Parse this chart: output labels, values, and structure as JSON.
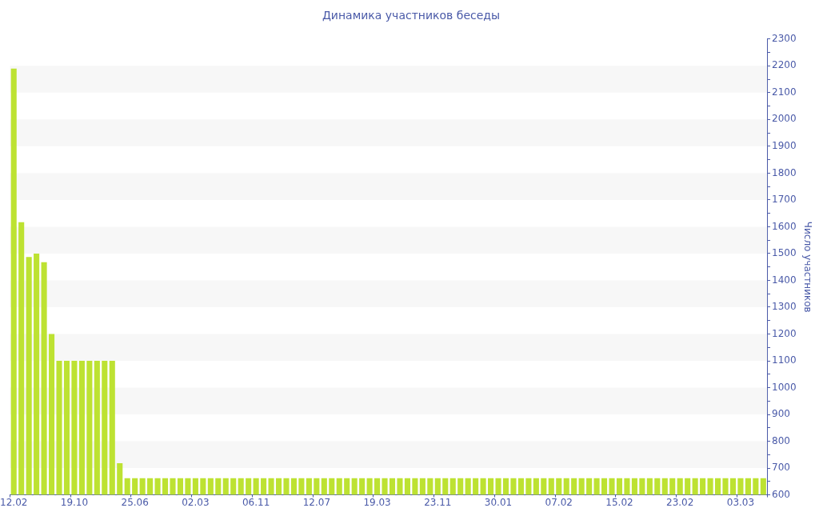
{
  "chart_data": {
    "type": "bar",
    "title": "Динамика участников беседы",
    "y2label": "Число участников",
    "categories": [
      "12.02",
      null,
      null,
      null,
      null,
      null,
      null,
      null,
      "19.10",
      null,
      null,
      null,
      null,
      null,
      null,
      null,
      "25.06",
      null,
      null,
      null,
      null,
      null,
      null,
      null,
      "02.03",
      null,
      null,
      null,
      null,
      null,
      null,
      null,
      "06.11",
      null,
      null,
      null,
      null,
      null,
      null,
      null,
      "12.07",
      null,
      null,
      null,
      null,
      null,
      null,
      null,
      "19.03",
      null,
      null,
      null,
      null,
      null,
      null,
      null,
      "23.11",
      null,
      null,
      null,
      null,
      null,
      null,
      null,
      "30.01",
      null,
      null,
      null,
      null,
      null,
      null,
      null,
      "07.02",
      null,
      null,
      null,
      null,
      null,
      null,
      null,
      "15.02",
      null,
      null,
      null,
      null,
      null,
      null,
      null,
      "23.02",
      null,
      null,
      null,
      null,
      null,
      null,
      null,
      "03.03",
      null,
      null,
      null
    ],
    "series": [
      {
        "color": "#bde232",
        "axis": "y2",
        "values": [
          2190,
          1617,
          1487,
          1500,
          1468,
          1200,
          1100,
          1100,
          1100,
          1100,
          1100,
          1100,
          1100,
          1100,
          718,
          662,
          662,
          662,
          662,
          662,
          662,
          662,
          662,
          662,
          662,
          662,
          662,
          662,
          662,
          662,
          662,
          662,
          662,
          662,
          662,
          662,
          662,
          662,
          662,
          662,
          662,
          662,
          662,
          662,
          662,
          662,
          662,
          662,
          662,
          662,
          662,
          662,
          662,
          662,
          662,
          662,
          662,
          662,
          662,
          662,
          662,
          662,
          662,
          662,
          662,
          662,
          662,
          662,
          662,
          662,
          662,
          662,
          662,
          662,
          662,
          662,
          662,
          662,
          662,
          662,
          662,
          662,
          662,
          662,
          662,
          662,
          662,
          662,
          662,
          662,
          662,
          662,
          662,
          662,
          662,
          662,
          662,
          662,
          662,
          662
        ]
      }
    ],
    "y2lim": [
      600,
      2300
    ],
    "y2ticks": [
      600,
      {
        "value": 650,
        "label": null
      },
      700,
      {
        "value": 750,
        "label": null
      },
      800,
      {
        "value": 850,
        "label": null
      },
      900,
      {
        "value": 950,
        "label": null
      },
      1000,
      {
        "value": 1050,
        "label": null
      },
      1100,
      {
        "value": 1150,
        "label": null
      },
      1200,
      {
        "value": 1250,
        "label": null
      },
      1300,
      {
        "value": 1350,
        "label": null
      },
      1400,
      {
        "value": 1450,
        "label": null
      },
      1500,
      {
        "value": 1550,
        "label": null
      },
      1600,
      {
        "value": 1650,
        "label": null
      },
      1700,
      {
        "value": 1750,
        "label": null
      },
      1800,
      {
        "value": 1850,
        "label": null
      },
      1900,
      {
        "value": 1950,
        "label": null
      },
      2000,
      {
        "value": 2050,
        "label": null
      },
      2100,
      {
        "value": 2150,
        "label": null
      },
      2200,
      {
        "value": 2250,
        "label": null
      },
      2300
    ],
    "bands": [
      {
        "axis": "y2",
        "from": 700,
        "to": 800,
        "color": "#f7f7f7"
      },
      {
        "axis": "y2",
        "from": 900,
        "to": 1000,
        "color": "#f7f7f7"
      },
      {
        "axis": "y2",
        "from": 1100,
        "to": 1200,
        "color": "#f7f7f7"
      },
      {
        "axis": "y2",
        "from": 1300,
        "to": 1400,
        "color": "#f7f7f7"
      },
      {
        "axis": "y2",
        "from": 1500,
        "to": 1600,
        "color": "#f7f7f7"
      },
      {
        "axis": "y2",
        "from": 1700,
        "to": 1800,
        "color": "#f7f7f7"
      },
      {
        "axis": "y2",
        "from": 1900,
        "to": 2000,
        "color": "#f7f7f7"
      },
      {
        "axis": "y2",
        "from": 2100,
        "to": 2200,
        "color": "#f7f7f7"
      }
    ],
    "legend": false
  }
}
